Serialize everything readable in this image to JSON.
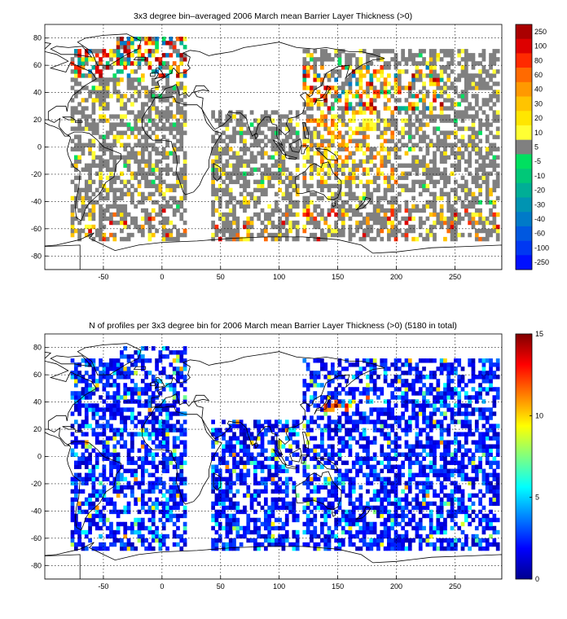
{
  "chart_data": [
    {
      "type": "heatmap",
      "title": "3x3 degree bin–averaged 2006 March mean Barrier Layer Thickness (>0)",
      "xlim": [
        -100,
        290
      ],
      "ylim": [
        -90,
        90
      ],
      "xticks": [
        -50,
        0,
        50,
        100,
        150,
        200,
        250
      ],
      "yticks": [
        -80,
        -60,
        -40,
        -20,
        0,
        20,
        40,
        60,
        80
      ],
      "grid": true,
      "colorbar": {
        "labels": [
          "250",
          "100",
          "80",
          "60",
          "40",
          "30",
          "20",
          "10",
          "5",
          "-5",
          "-10",
          "-20",
          "-30",
          "-40",
          "-60",
          "-100",
          "-250"
        ],
        "colors": [
          "#aa0000",
          "#dd0000",
          "#ff2a00",
          "#ff6a00",
          "#ff9900",
          "#ffc400",
          "#ffe600",
          "#ffff33",
          "#808080",
          "#00e060",
          "#00c878",
          "#00ae96",
          "#0094b2",
          "#007ac8",
          "#0058e0",
          "#0038f2",
          "#0010ff"
        ]
      }
    },
    {
      "type": "heatmap",
      "title": "N of profiles per 3x3 degree bin for 2006 March mean Barrier Layer Thickness (>0) (5180 in total)",
      "xlim": [
        -100,
        290
      ],
      "ylim": [
        -90,
        90
      ],
      "xticks": [
        -50,
        0,
        50,
        100,
        150,
        200,
        250
      ],
      "yticks": [
        -80,
        -60,
        -40,
        -20,
        0,
        20,
        40,
        60,
        80
      ],
      "grid": true,
      "colorbar": {
        "ticks": [
          "0",
          "5",
          "10",
          "15"
        ],
        "range": [
          0,
          15
        ],
        "colormap": "jet"
      }
    }
  ]
}
